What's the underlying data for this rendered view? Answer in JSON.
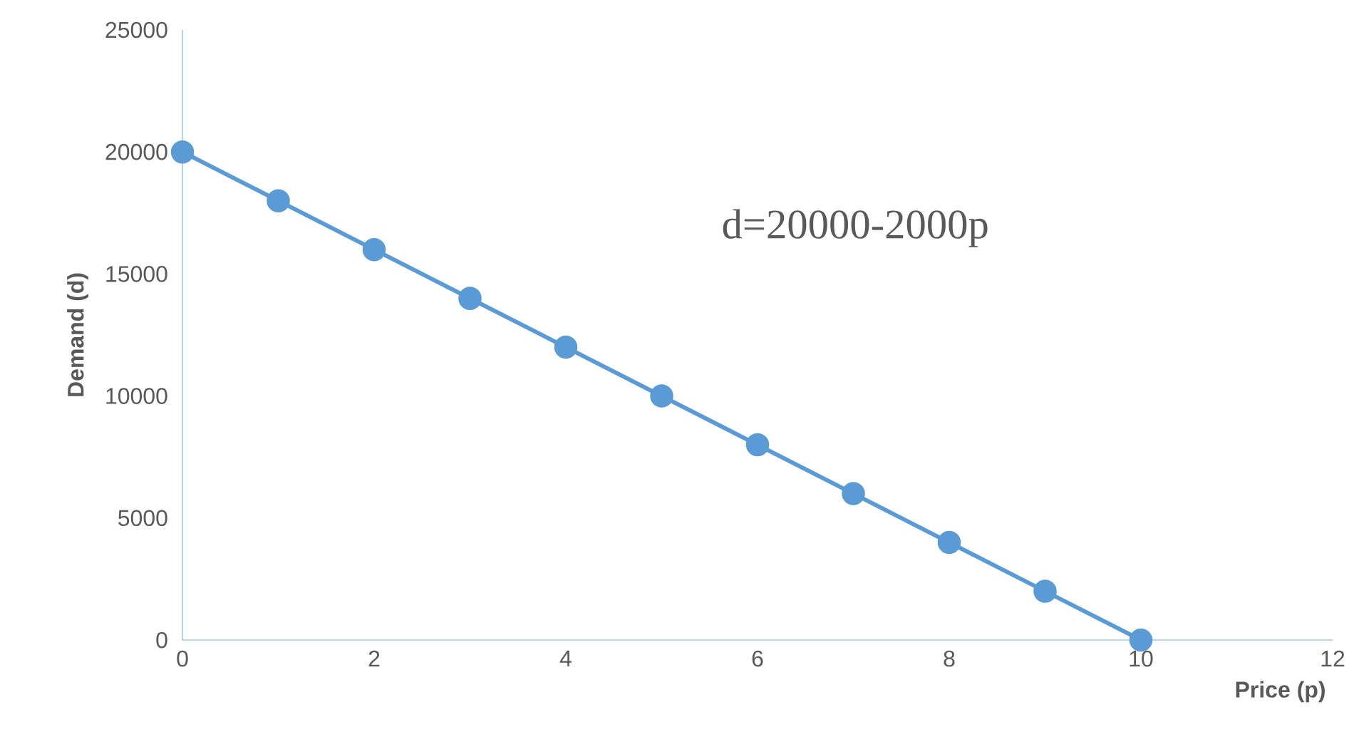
{
  "chart_data": {
    "type": "line",
    "xlabel": "Price (p)",
    "ylabel": "Demand (d)",
    "annotations": [
      "d=20000-2000p"
    ],
    "x": [
      0,
      1,
      2,
      3,
      4,
      5,
      6,
      7,
      8,
      9,
      10
    ],
    "series": [
      {
        "color": "#5b9bd5",
        "values": [
          20000,
          18000,
          16000,
          14000,
          12000,
          10000,
          8000,
          6000,
          4000,
          2000,
          0
        ]
      }
    ],
    "xlim": [
      0,
      12
    ],
    "xticks": [
      0,
      2,
      4,
      6,
      8,
      10,
      12
    ],
    "ylim": [
      0,
      25000
    ],
    "yticks": [
      0,
      5000,
      10000,
      15000,
      20000,
      25000
    ],
    "marker": "circle",
    "line_style": "solid"
  }
}
